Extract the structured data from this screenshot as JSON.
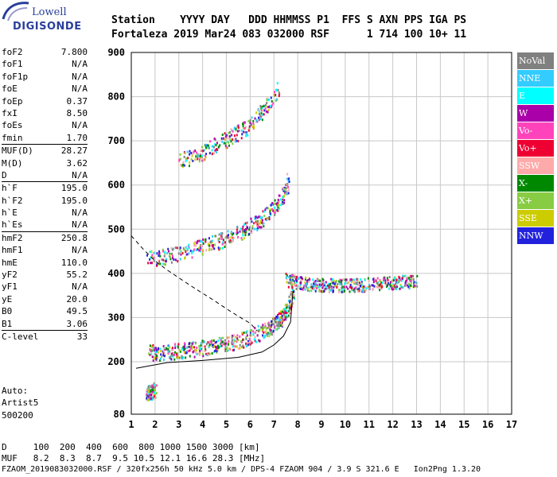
{
  "logo": {
    "line1": "Lowell",
    "line2": "DIGISONDE"
  },
  "header": {
    "row1": "Station    YYYY DAY   DDD HHMMSS P1  FFS S AXN PPS IGA PS",
    "row2": "Fortaleza 2019 Mar24 083 032000 RSF      1 714 100 10+ 11"
  },
  "params": {
    "groups": [
      [
        {
          "name": "foF2",
          "value": "7.800"
        },
        {
          "name": "foF1",
          "value": "N/A"
        },
        {
          "name": "foF1p",
          "value": "N/A"
        },
        {
          "name": "foE",
          "value": "N/A"
        },
        {
          "name": "foEp",
          "value": "0.37"
        },
        {
          "name": "fxI",
          "value": "8.50"
        },
        {
          "name": "foEs",
          "value": "N/A"
        },
        {
          "name": "fmin",
          "value": "1.70"
        }
      ],
      [
        {
          "name": "MUF(D)",
          "value": "28.27"
        },
        {
          "name": "M(D)",
          "value": "3.62"
        },
        {
          "name": "D",
          "value": "N/A"
        }
      ],
      [
        {
          "name": "h`F",
          "value": "195.0"
        },
        {
          "name": "h`F2",
          "value": "195.0"
        },
        {
          "name": "h`E",
          "value": "N/A"
        },
        {
          "name": "h`Es",
          "value": "N/A"
        }
      ],
      [
        {
          "name": "hmF2",
          "value": "250.8"
        },
        {
          "name": "hmF1",
          "value": "N/A"
        },
        {
          "name": "hmE",
          "value": "110.0"
        },
        {
          "name": "yF2",
          "value": "55.2"
        },
        {
          "name": "yF1",
          "value": "N/A"
        },
        {
          "name": "yE",
          "value": "20.0"
        },
        {
          "name": "B0",
          "value": "49.5"
        },
        {
          "name": "B1",
          "value": "3.06"
        }
      ],
      [
        {
          "name": "C-level",
          "value": "33"
        }
      ]
    ]
  },
  "auto": {
    "line1": "Auto:",
    "line2": "Artist5",
    "line3": "500200"
  },
  "legend": [
    {
      "label": "NoVal",
      "color": "#808080"
    },
    {
      "label": "NNE",
      "color": "#33ccff"
    },
    {
      "label": "E",
      "color": "#00ffff"
    },
    {
      "label": "W",
      "color": "#aa00aa"
    },
    {
      "label": "Vo-",
      "color": "#ff44bb"
    },
    {
      "label": "Vo+",
      "color": "#ee0033"
    },
    {
      "label": "SSW",
      "color": "#ffaaaa"
    },
    {
      "label": "X-",
      "color": "#008800"
    },
    {
      "label": "X+",
      "color": "#88cc44"
    },
    {
      "label": "SSE",
      "color": "#cccc00"
    },
    {
      "label": "NNW",
      "color": "#2222dd"
    }
  ],
  "bottom": {
    "line1": "D     100  200  400  600  800 1000 1500 3000 [km]",
    "line2": "MUF   8.2  8.3  8.7  9.5 10.5 12.1 16.6 28.3 [MHz]",
    "line3": "FZAOM_2019083032000.RSF / 320fx256h 50 kHz 5.0 km / DPS-4 FZAOM 904 / 3.9 S 321.6 E   Ion2Png 1.3.20"
  },
  "chart_data": {
    "type": "scatter",
    "title": "",
    "xlabel": "",
    "ylabel": "",
    "xlim": [
      1,
      17
    ],
    "ylim": [
      80,
      900
    ],
    "x_ticks": [
      1,
      2,
      3,
      4,
      5,
      6,
      7,
      8,
      9,
      10,
      11,
      12,
      13,
      14,
      15,
      16,
      17
    ],
    "y_ticks": [
      80,
      200,
      300,
      400,
      500,
      600,
      700,
      800,
      900
    ],
    "grid": true,
    "legend_position": "right",
    "traces": [
      {
        "name": "O-trace F2 1st hop",
        "x": [
          1.7,
          2.2,
          2.8,
          3.3,
          3.9,
          4.5,
          5.0,
          5.6,
          6.1,
          6.7,
          7.0,
          7.3,
          7.6,
          7.8
        ],
        "y": [
          212,
          212,
          214,
          218,
          222,
          226,
          232,
          240,
          250,
          262,
          275,
          290,
          315,
          360
        ]
      },
      {
        "name": "F2 2nd hop",
        "x": [
          1.7,
          2.5,
          3.3,
          4.0,
          4.8,
          5.5,
          6.2,
          6.8,
          7.3,
          7.6
        ],
        "y": [
          425,
          430,
          440,
          452,
          466,
          482,
          505,
          530,
          560,
          600
        ]
      },
      {
        "name": "F2 3rd hop",
        "x": [
          3.0,
          3.8,
          4.5,
          5.2,
          5.9,
          6.5,
          7.2
        ],
        "y": [
          645,
          660,
          680,
          700,
          725,
          760,
          810
        ]
      },
      {
        "name": "X-spread band",
        "x": [
          7.5,
          8.0,
          8.5,
          9.0,
          9.5,
          10.0,
          10.5,
          11.0,
          11.5,
          12.0,
          12.5,
          13.0
        ],
        "y": [
          378,
          372,
          368,
          366,
          366,
          366,
          366,
          368,
          370,
          372,
          374,
          375
        ]
      },
      {
        "name": "Es patch",
        "x": [
          1.6,
          1.8,
          2.0
        ],
        "y": [
          118,
          122,
          125
        ]
      }
    ],
    "profile_line": {
      "x": [
        1.2,
        2.5,
        4.0,
        5.5,
        6.5,
        7.0,
        7.4,
        7.7,
        7.8
      ],
      "y": [
        185,
        198,
        203,
        210,
        222,
        238,
        258,
        290,
        360
      ]
    },
    "profile_dashed": {
      "x": [
        1.0,
        1.5,
        2.0,
        2.5,
        3.0,
        3.5,
        4.0,
        4.5,
        5.0,
        5.5,
        6.0,
        6.3
      ],
      "y": [
        485,
        455,
        428,
        408,
        390,
        372,
        355,
        338,
        320,
        303,
        287,
        270
      ]
    }
  }
}
